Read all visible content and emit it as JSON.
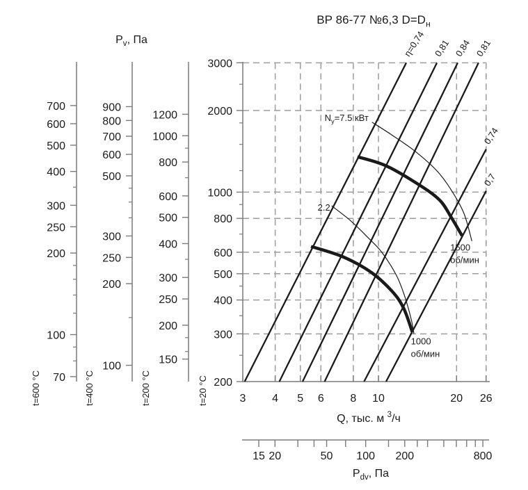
{
  "chart_data": {
    "type": "line",
    "title_parts": [
      {
        "t": "ВР 86-77 №6,3 D=D"
      },
      {
        "t": "н",
        "v": "sub"
      }
    ],
    "axes": {
      "q": {
        "title_parts": [
          {
            "t": "Q, тыс. м "
          },
          {
            "t": "3",
            "v": "sup"
          },
          {
            "t": "/ч"
          }
        ],
        "scale": "log",
        "min": 3,
        "max": 26,
        "ticks": [
          3,
          4,
          5,
          6,
          8,
          10,
          20,
          26
        ],
        "grid_ticks": [
          4,
          5,
          6,
          8,
          10,
          20
        ]
      },
      "pv": {
        "title_parts": [
          {
            "t": "P"
          },
          {
            "t": "v",
            "v": "sub"
          },
          {
            "t": ", Па"
          }
        ],
        "scale": "log",
        "min": 200,
        "max": 3000,
        "major_ticks": [
          3000,
          2000,
          1000,
          800,
          600,
          500,
          400,
          300,
          200
        ],
        "minor_ticks": [
          2500,
          1800,
          1500,
          1200,
          900,
          700,
          450,
          350,
          250
        ],
        "grid_ticks": [
          2000,
          1000,
          800,
          600,
          500,
          400,
          300
        ],
        "temperature_label": "t=20 °C"
      },
      "pdv": {
        "title_parts": [
          {
            "t": "P"
          },
          {
            "t": "dv",
            "v": "sub"
          },
          {
            "t": ", Па"
          }
        ],
        "scale": "log",
        "ticks": [
          15,
          20,
          30,
          40,
          50,
          70,
          100,
          150,
          200,
          250,
          300,
          400,
          500,
          600,
          700,
          800
        ],
        "labeled_ticks": [
          15,
          20,
          50,
          100,
          200,
          800
        ]
      }
    },
    "side_scales": [
      {
        "temperature_label": "t=600 °C",
        "density_factor": 0.3356,
        "major_ticks": [
          700,
          600,
          500,
          400,
          300,
          250,
          200,
          100,
          70
        ],
        "minor_ticks": [
          350,
          180,
          160,
          140,
          120,
          90,
          80
        ]
      },
      {
        "temperature_label": "t=400 °C",
        "density_factor": 0.4354,
        "major_ticks": [
          900,
          800,
          700,
          600,
          500,
          300,
          250,
          200,
          100
        ],
        "minor_ticks": [
          450,
          400,
          350,
          150
        ]
      },
      {
        "temperature_label": "t=200 °C",
        "density_factor": 0.6195,
        "major_ticks": [
          1200,
          1000,
          800,
          600,
          500,
          400,
          300,
          250,
          200,
          150
        ],
        "minor_ticks": [
          900,
          700,
          350,
          180,
          160
        ]
      }
    ],
    "efficiency_lines": [
      {
        "label": "η=0,74",
        "q1": 3.05,
        "p1": 200,
        "q2": 12.8,
        "p2": 3000
      },
      {
        "label": "0,81",
        "q1": 4.15,
        "p1": 200,
        "q2": 16.8,
        "p2": 3000
      },
      {
        "label": "0,84",
        "q1": 5.1,
        "p1": 200,
        "q2": 20.2,
        "p2": 3000
      },
      {
        "label": "0,81",
        "q1": 6.2,
        "p1": 200,
        "q2": 24.3,
        "p2": 3000
      },
      {
        "label": "0,74",
        "q1": 8.8,
        "p1": 200,
        "q2": 26,
        "p2": 1440
      },
      {
        "label": "0,7",
        "q1": 10.7,
        "p1": 200,
        "q2": 26,
        "p2": 1010
      }
    ],
    "fan_curves": [
      {
        "rpm_label_lines": [
          "1500",
          "об/мин"
        ],
        "points_q_pv": [
          [
            8.3,
            1350
          ],
          [
            10.7,
            1250
          ],
          [
            14.2,
            1070
          ],
          [
            17.2,
            935
          ],
          [
            19.1,
            805
          ],
          [
            21,
            690
          ]
        ]
      },
      {
        "rpm_label_lines": [
          "1000",
          "об/мин"
        ],
        "points_q_pv": [
          [
            5.5,
            630
          ],
          [
            7.3,
            577
          ],
          [
            9.4,
            505
          ],
          [
            11.3,
            430
          ],
          [
            12.5,
            373
          ],
          [
            13.5,
            305
          ]
        ]
      }
    ],
    "power_curves": [
      {
        "label_parts": [
          {
            "t": "N"
          },
          {
            "t": "у",
            "v": "sub"
          },
          {
            "t": "=7.5 кВт"
          }
        ],
        "points_q_pv": [
          [
            9.45,
            1810
          ],
          [
            11.2,
            1630
          ],
          [
            13.9,
            1410
          ],
          [
            16.9,
            1190
          ],
          [
            19.3,
            1000
          ],
          [
            21.4,
            830
          ],
          [
            22.9,
            660
          ]
        ]
      },
      {
        "label_parts": [
          {
            "t": "2.2"
          }
        ],
        "points_q_pv": [
          [
            6.6,
            890
          ],
          [
            7.8,
            785
          ],
          [
            9.1,
            680
          ],
          [
            10.3,
            600
          ],
          [
            11.7,
            495
          ],
          [
            12.6,
            415
          ],
          [
            13.4,
            337
          ],
          [
            13.7,
            300
          ]
        ]
      }
    ],
    "colors": {
      "curve": "#1a1a1a",
      "grid": "#9c9c9c",
      "axis": "#7a7a7a",
      "text": "#1a1a1a"
    }
  }
}
